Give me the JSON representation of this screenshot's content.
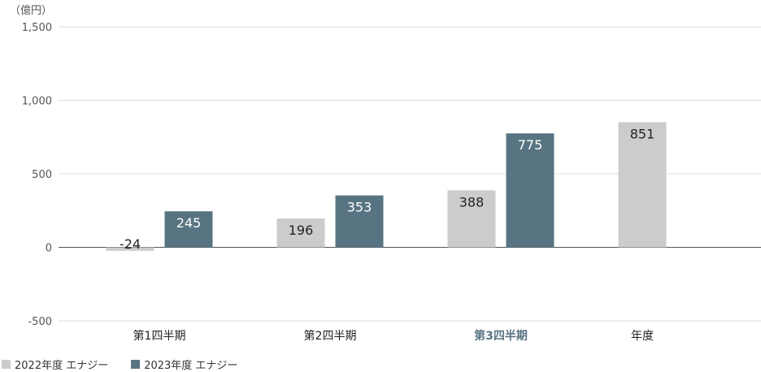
{
  "chart_data": {
    "type": "bar",
    "unit_label": "（億円）",
    "categories": [
      "第1四半期",
      "第2四半期",
      "第3四半期",
      "年度"
    ],
    "series": [
      {
        "name": "2022年度 エナジー",
        "color": "#cccccc",
        "values": [
          -24,
          196,
          388,
          851
        ]
      },
      {
        "name": "2023年度 エナジー",
        "color": "#587482",
        "values": [
          245,
          353,
          775,
          null
        ]
      }
    ],
    "y_ticks": [
      -500,
      0,
      500,
      1000,
      1500
    ],
    "y_tick_labels": [
      "-500",
      "0",
      "500",
      "1,000",
      "1,500"
    ],
    "ylim": [
      -500,
      1500
    ],
    "grid": true,
    "highlight_category_color": "#587482",
    "highlight_category_index": 2,
    "legend_position": "bottom-left"
  }
}
